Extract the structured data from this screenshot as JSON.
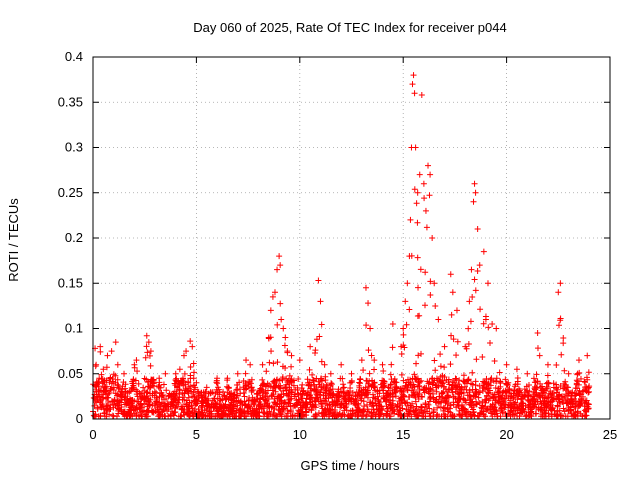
{
  "chart_data": {
    "type": "scatter",
    "title": "Day 060 of 2025, Rate Of TEC Index for receiver p044",
    "xlabel": "GPS time / hours",
    "ylabel": "ROTI / TECUs",
    "xlim": [
      0,
      25
    ],
    "ylim": [
      0,
      0.4
    ],
    "xticks": [
      0,
      5,
      10,
      15,
      20,
      25
    ],
    "xtick_labels": [
      "0",
      "5",
      "10",
      "15",
      "20",
      "25"
    ],
    "yticks": [
      0,
      0.05,
      0.1,
      0.15,
      0.2,
      0.25,
      0.3,
      0.35,
      0.4
    ],
    "ytick_labels": [
      "0",
      "0.05",
      "0.1",
      "0.15",
      "0.2",
      "0.25",
      "0.3",
      "0.35",
      "0.4"
    ],
    "grid": true,
    "marker": "+",
    "color": "#ff0000",
    "series": [
      {
        "name": "ROTI",
        "points": [
          [
            0.1,
            0.078
          ],
          [
            0.15,
            0.06
          ],
          [
            0.3,
            0.045
          ],
          [
            0.35,
            0.08
          ],
          [
            0.5,
            0.055
          ],
          [
            0.7,
            0.07
          ],
          [
            0.9,
            0.075
          ],
          [
            1.1,
            0.085
          ],
          [
            1.2,
            0.06
          ],
          [
            1.5,
            0.05
          ],
          [
            2.0,
            0.06
          ],
          [
            2.1,
            0.065
          ],
          [
            2.6,
            0.092
          ],
          [
            2.7,
            0.085
          ],
          [
            2.8,
            0.075
          ],
          [
            3.2,
            0.045
          ],
          [
            3.5,
            0.05
          ],
          [
            4.0,
            0.05
          ],
          [
            4.2,
            0.055
          ],
          [
            4.4,
            0.07
          ],
          [
            4.5,
            0.075
          ],
          [
            4.7,
            0.086
          ],
          [
            4.8,
            0.08
          ],
          [
            5.0,
            0.04
          ],
          [
            5.5,
            0.035
          ],
          [
            6.0,
            0.045
          ],
          [
            6.5,
            0.045
          ],
          [
            7.0,
            0.05
          ],
          [
            7.4,
            0.065
          ],
          [
            7.6,
            0.06
          ],
          [
            8.2,
            0.06
          ],
          [
            8.5,
            0.09
          ],
          [
            8.6,
            0.12
          ],
          [
            8.7,
            0.135
          ],
          [
            8.8,
            0.14
          ],
          [
            8.9,
            0.165
          ],
          [
            9.0,
            0.18
          ],
          [
            9.05,
            0.17
          ],
          [
            9.1,
            0.11
          ],
          [
            9.2,
            0.1
          ],
          [
            9.3,
            0.09
          ],
          [
            9.4,
            0.075
          ],
          [
            9.6,
            0.07
          ],
          [
            10.0,
            0.065
          ],
          [
            10.5,
            0.08
          ],
          [
            10.9,
            0.153
          ],
          [
            11.0,
            0.13
          ],
          [
            11.2,
            0.06
          ],
          [
            11.5,
            0.05
          ],
          [
            12.0,
            0.06
          ],
          [
            12.5,
            0.05
          ],
          [
            13.0,
            0.065
          ],
          [
            13.2,
            0.145
          ],
          [
            13.3,
            0.128
          ],
          [
            13.4,
            0.1
          ],
          [
            13.6,
            0.065
          ],
          [
            14.0,
            0.06
          ],
          [
            14.5,
            0.105
          ],
          [
            14.9,
            0.08
          ],
          [
            15.0,
            0.1
          ],
          [
            15.1,
            0.13
          ],
          [
            15.2,
            0.15
          ],
          [
            15.3,
            0.18
          ],
          [
            15.35,
            0.22
          ],
          [
            15.4,
            0.3
          ],
          [
            15.45,
            0.37
          ],
          [
            15.5,
            0.38
          ],
          [
            15.55,
            0.36
          ],
          [
            15.6,
            0.3
          ],
          [
            15.7,
            0.25
          ],
          [
            15.8,
            0.27
          ],
          [
            15.9,
            0.358
          ],
          [
            16.0,
            0.26
          ],
          [
            16.1,
            0.23
          ],
          [
            16.2,
            0.28
          ],
          [
            16.3,
            0.27
          ],
          [
            16.4,
            0.2
          ],
          [
            16.5,
            0.15
          ],
          [
            16.7,
            0.11
          ],
          [
            17.0,
            0.08
          ],
          [
            17.3,
            0.16
          ],
          [
            17.4,
            0.14
          ],
          [
            17.6,
            0.12
          ],
          [
            18.0,
            0.08
          ],
          [
            18.2,
            0.13
          ],
          [
            18.3,
            0.165
          ],
          [
            18.4,
            0.24
          ],
          [
            18.45,
            0.26
          ],
          [
            18.5,
            0.25
          ],
          [
            18.6,
            0.21
          ],
          [
            18.7,
            0.17
          ],
          [
            18.9,
            0.185
          ],
          [
            19.0,
            0.11
          ],
          [
            19.1,
            0.15
          ],
          [
            19.3,
            0.105
          ],
          [
            19.5,
            0.1
          ],
          [
            20.0,
            0.06
          ],
          [
            20.5,
            0.055
          ],
          [
            21.0,
            0.05
          ],
          [
            21.5,
            0.095
          ],
          [
            21.6,
            0.07
          ],
          [
            22.0,
            0.06
          ],
          [
            22.5,
            0.14
          ],
          [
            22.6,
            0.15
          ],
          [
            23.0,
            0.05
          ],
          [
            23.5,
            0.065
          ],
          [
            23.9,
            0.07
          ]
        ]
      }
    ]
  }
}
